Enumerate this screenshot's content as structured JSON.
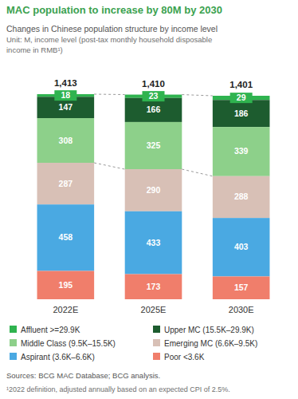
{
  "chart_data": {
    "type": "bar",
    "title": "MAC population to increase by 80M by 2030",
    "subtitle": [
      "Changes in Chinese population structure by income level",
      "Unit: M, income level (post-tax monthly household disposable",
      "income in RMB¹)"
    ],
    "categories": [
      "2022E",
      "2025E",
      "2030E"
    ],
    "series": [
      {
        "name": "Affluent >=29.9K",
        "color": "#2fb34f",
        "values": [
          18,
          23,
          29
        ]
      },
      {
        "name": "Upper MC (15.5K–29.9K)",
        "color": "#1d5c2f",
        "values": [
          147,
          166,
          186
        ]
      },
      {
        "name": "Middle Class (9.5K–15.5K)",
        "color": "#8dd08a",
        "values": [
          308,
          325,
          339
        ]
      },
      {
        "name": "Emerging MC (6.6K–9.5K)",
        "color": "#d8c0b6",
        "values": [
          287,
          290,
          288
        ]
      },
      {
        "name": "Aspirant (3.6K–6.6K)",
        "color": "#4aa9e2",
        "values": [
          458,
          433,
          403
        ]
      },
      {
        "name": "Poor <3.6K",
        "color": "#f07e6b",
        "values": [
          195,
          173,
          157
        ]
      }
    ],
    "totals": [
      1413,
      1410,
      1401
    ],
    "total_labels": [
      "1,413",
      "1,410",
      "1,401"
    ],
    "stacked": true,
    "data_labels": true,
    "tick_labels": "x",
    "legend": "bottom",
    "source": "Sources: BCG MAC Database; BCG analysis.",
    "footnote": "¹2022 definition, adjusted annually based on an expected CPI of 2.5%."
  }
}
